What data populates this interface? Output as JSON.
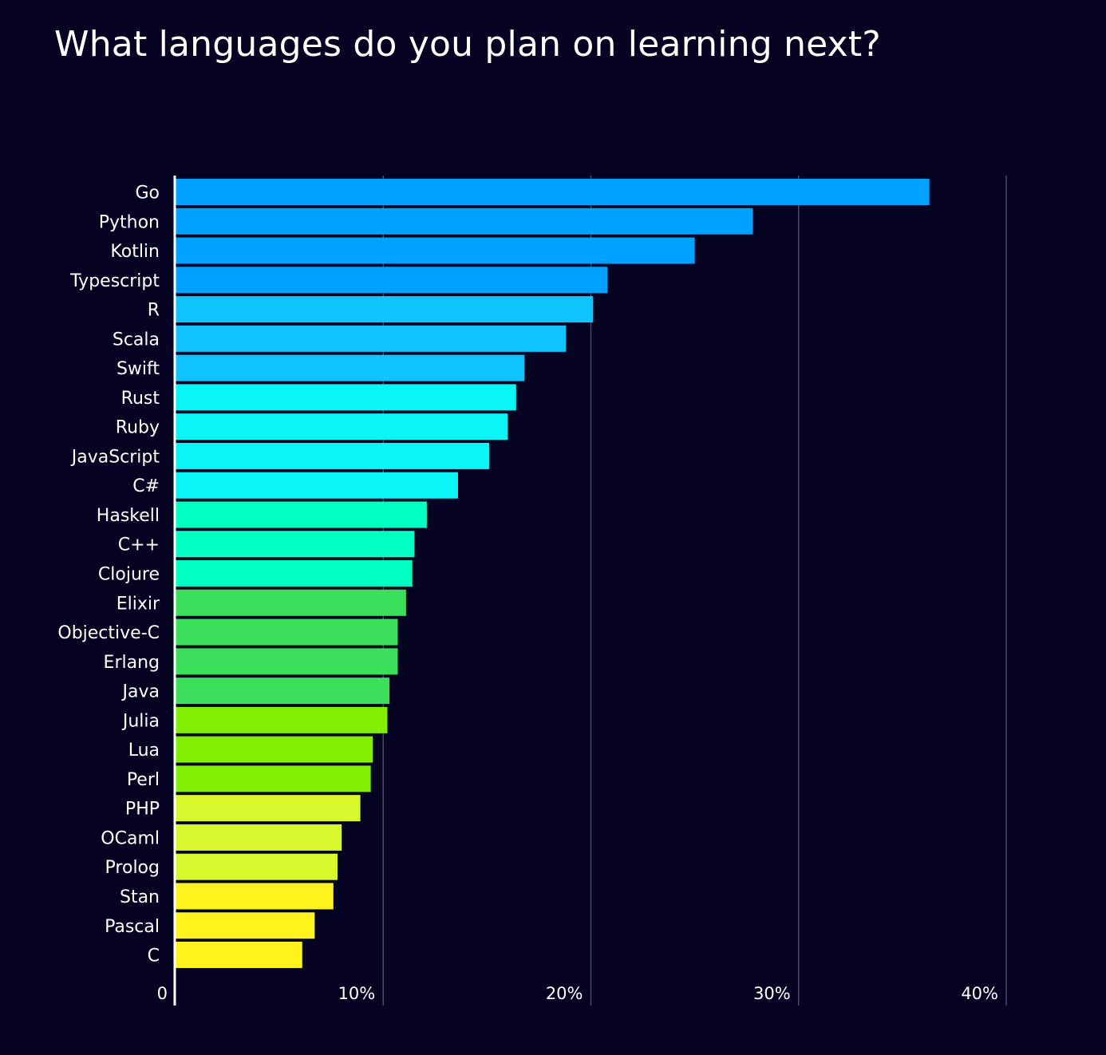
{
  "chart_data": {
    "type": "bar",
    "orientation": "horizontal",
    "title": "What languages do you plan on learning next?",
    "xlabel": "",
    "ylabel": "",
    "categories": [
      "Go",
      "Python",
      "Kotlin",
      "Typescript",
      "R",
      "Scala",
      "Swift",
      "Rust",
      "Ruby",
      "JavaScript",
      "C#",
      "Haskell",
      "C++",
      "Clojure",
      "Elixir",
      "Objective-C",
      "Erlang",
      "Java",
      "Julia",
      "Lua",
      "Perl",
      "PHP",
      "OCaml",
      "Prolog",
      "Stan",
      "Pascal",
      "C"
    ],
    "values": [
      36.3,
      27.8,
      25.0,
      20.8,
      20.1,
      18.8,
      16.8,
      16.4,
      16.0,
      15.1,
      13.6,
      12.1,
      11.5,
      11.4,
      11.1,
      10.7,
      10.7,
      10.3,
      10.2,
      9.5,
      9.4,
      8.9,
      8.0,
      7.8,
      7.6,
      6.7,
      6.1
    ],
    "colors": [
      "#00a2ff",
      "#00a2ff",
      "#00a2ff",
      "#00a2ff",
      "#10c4ff",
      "#10c4ff",
      "#10c4ff",
      "#0af5f5",
      "#0af5f5",
      "#0af5f5",
      "#0af5f5",
      "#00ffc0",
      "#00ffc0",
      "#00ffc0",
      "#3ae05a",
      "#3ae05a",
      "#3ae05a",
      "#3ae05a",
      "#80f000",
      "#80f000",
      "#80f000",
      "#d8f82c",
      "#d8f82c",
      "#d8f82c",
      "#fff31e",
      "#fff31e",
      "#fff31e"
    ],
    "xlim": [
      0,
      40
    ],
    "xticks": [
      0,
      10,
      20,
      30,
      40
    ],
    "xtick_labels": [
      "0",
      "10%",
      "20%",
      "30%",
      "40%"
    ],
    "grid": true,
    "legend": "none"
  }
}
